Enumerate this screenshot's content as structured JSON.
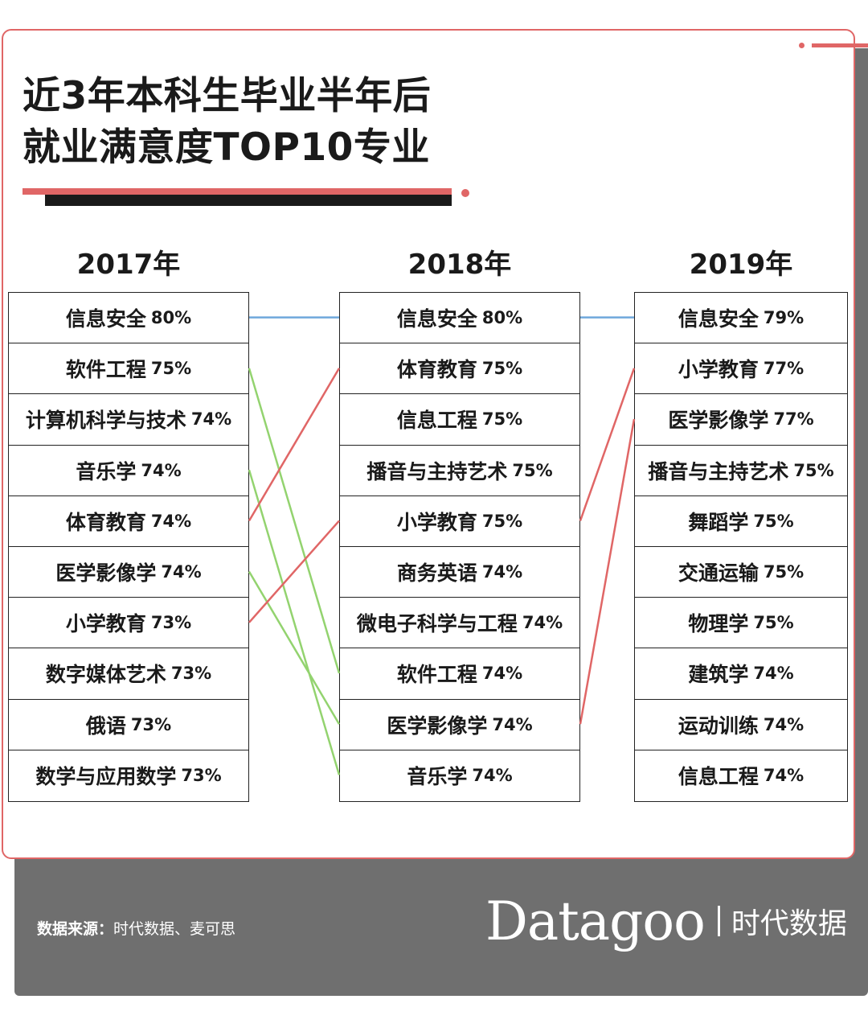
{
  "title": {
    "line1": "近3年本科生毕业半年后",
    "line2": "就业满意度TOP10专业"
  },
  "colors": {
    "accent": "#e06666",
    "unchanged_link": "#6fa8dc",
    "rise_link": "#e06666",
    "fall_link": "#93d36f",
    "footer_bg": "#6f6f6f"
  },
  "columns": [
    {
      "year": "2017年",
      "items": [
        {
          "name": "信息安全",
          "pct": "80%"
        },
        {
          "name": "软件工程",
          "pct": "75%"
        },
        {
          "name": "计算机科学与技术",
          "pct": "74%"
        },
        {
          "name": "音乐学",
          "pct": "74%"
        },
        {
          "name": "体育教育",
          "pct": "74%"
        },
        {
          "name": "医学影像学",
          "pct": "74%"
        },
        {
          "name": "小学教育",
          "pct": "73%"
        },
        {
          "name": "数字媒体艺术",
          "pct": "73%"
        },
        {
          "name": "俄语",
          "pct": "73%"
        },
        {
          "name": "数学与应用数学",
          "pct": "73%"
        }
      ]
    },
    {
      "year": "2018年",
      "items": [
        {
          "name": "信息安全",
          "pct": "80%"
        },
        {
          "name": "体育教育",
          "pct": "75%"
        },
        {
          "name": "信息工程",
          "pct": "75%"
        },
        {
          "name": "播音与主持艺术",
          "pct": "75%"
        },
        {
          "name": "小学教育",
          "pct": "75%"
        },
        {
          "name": "商务英语",
          "pct": "74%"
        },
        {
          "name": "微电子科学与工程",
          "pct": "74%"
        },
        {
          "name": "软件工程",
          "pct": "74%"
        },
        {
          "name": "医学影像学",
          "pct": "74%"
        },
        {
          "name": "音乐学",
          "pct": "74%"
        }
      ]
    },
    {
      "year": "2019年",
      "items": [
        {
          "name": "信息安全",
          "pct": "79%"
        },
        {
          "name": "小学教育",
          "pct": "77%"
        },
        {
          "name": "医学影像学",
          "pct": "77%"
        },
        {
          "name": "播音与主持艺术",
          "pct": "75%"
        },
        {
          "name": "舞蹈学",
          "pct": "75%"
        },
        {
          "name": "交通运输",
          "pct": "75%"
        },
        {
          "name": "物理学",
          "pct": "75%"
        },
        {
          "name": "建筑学",
          "pct": "74%"
        },
        {
          "name": "运动训练",
          "pct": "74%"
        },
        {
          "name": "信息工程",
          "pct": "74%"
        }
      ]
    }
  ],
  "links": [
    {
      "from_col": 0,
      "from_rank": 1,
      "to_col": 1,
      "to_rank": 1,
      "trend": "unchanged"
    },
    {
      "from_col": 0,
      "from_rank": 2,
      "to_col": 1,
      "to_rank": 8,
      "trend": "fall"
    },
    {
      "from_col": 0,
      "from_rank": 4,
      "to_col": 1,
      "to_rank": 10,
      "trend": "fall"
    },
    {
      "from_col": 0,
      "from_rank": 5,
      "to_col": 1,
      "to_rank": 2,
      "trend": "rise"
    },
    {
      "from_col": 0,
      "from_rank": 6,
      "to_col": 1,
      "to_rank": 9,
      "trend": "fall"
    },
    {
      "from_col": 0,
      "from_rank": 7,
      "to_col": 1,
      "to_rank": 5,
      "trend": "rise"
    },
    {
      "from_col": 1,
      "from_rank": 1,
      "to_col": 2,
      "to_rank": 1,
      "trend": "unchanged"
    },
    {
      "from_col": 1,
      "from_rank": 5,
      "to_col": 2,
      "to_rank": 2,
      "trend": "rise"
    },
    {
      "from_col": 1,
      "from_rank": 9,
      "to_col": 2,
      "to_rank": 3,
      "trend": "rise"
    }
  ],
  "footer": {
    "source_label": "数据来源：",
    "source_text": "时代数据、麦可思",
    "brand_name": "Datagoo",
    "brand_cn": "时代数据"
  }
}
